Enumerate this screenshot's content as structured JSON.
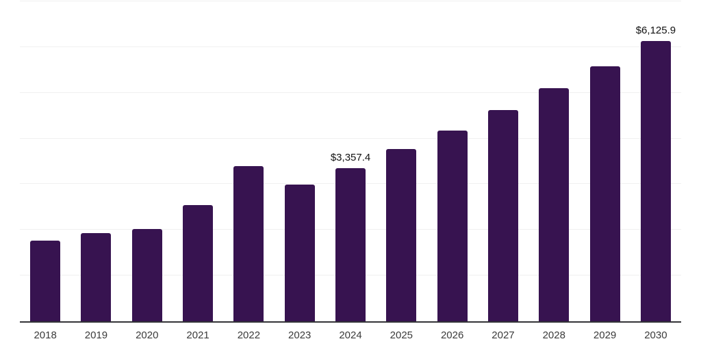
{
  "chart_data": {
    "type": "bar",
    "title": "",
    "xlabel": "",
    "ylabel": "",
    "unit": "USD",
    "categories": [
      "2018",
      "2019",
      "2020",
      "2021",
      "2022",
      "2023",
      "2024",
      "2025",
      "2026",
      "2027",
      "2028",
      "2029",
      "2030"
    ],
    "values": [
      1760,
      1930,
      2020,
      2540,
      3390,
      2990,
      3357.4,
      3765,
      4170,
      4620,
      5100,
      5575,
      6125.9
    ],
    "point_labels": [
      null,
      null,
      null,
      null,
      null,
      null,
      "$3,357.4",
      null,
      null,
      null,
      null,
      null,
      "$6,125.9"
    ],
    "ylim": [
      0,
      7030
    ],
    "gridline_values": [
      1000,
      2000,
      3000,
      4000,
      5000,
      6000,
      7000
    ],
    "grid": "horizontal",
    "legend_position": "none",
    "colors": {
      "bar": "#371350",
      "axis_line": "#333337",
      "gridline": "#f0f0f0",
      "tick_label": "#3a3a3a",
      "data_label": "#111111",
      "background": "#ffffff"
    }
  }
}
